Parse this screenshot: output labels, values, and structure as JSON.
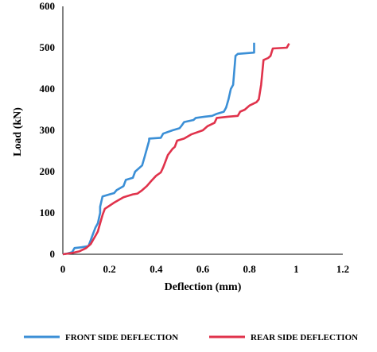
{
  "chart_data": {
    "type": "line",
    "xlabel": "Deflection (mm)",
    "ylabel": "Load (kN)",
    "xlim": [
      0,
      1.2
    ],
    "ylim": [
      0,
      600
    ],
    "xticks": [
      "0",
      "0.2",
      "0.4",
      "0.6",
      "0.8",
      "1",
      "1.2"
    ],
    "yticks": [
      "0",
      "100",
      "200",
      "300",
      "400",
      "500",
      "600"
    ],
    "grid": false,
    "legend_position": "bottom",
    "series": [
      {
        "name": "FRONT SIDE DEFLECTION",
        "color": "#3b8fd6",
        "points": [
          [
            0.0,
            0
          ],
          [
            0.02,
            2
          ],
          [
            0.04,
            5
          ],
          [
            0.05,
            15
          ],
          [
            0.08,
            17
          ],
          [
            0.11,
            20
          ],
          [
            0.12,
            35
          ],
          [
            0.13,
            50
          ],
          [
            0.14,
            65
          ],
          [
            0.15,
            75
          ],
          [
            0.16,
            100
          ],
          [
            0.16,
            115
          ],
          [
            0.17,
            140
          ],
          [
            0.2,
            145
          ],
          [
            0.22,
            148
          ],
          [
            0.23,
            155
          ],
          [
            0.26,
            165
          ],
          [
            0.27,
            180
          ],
          [
            0.3,
            185
          ],
          [
            0.31,
            200
          ],
          [
            0.34,
            215
          ],
          [
            0.35,
            235
          ],
          [
            0.36,
            255
          ],
          [
            0.37,
            275
          ],
          [
            0.37,
            280
          ],
          [
            0.42,
            282
          ],
          [
            0.43,
            292
          ],
          [
            0.47,
            300
          ],
          [
            0.5,
            305
          ],
          [
            0.51,
            312
          ],
          [
            0.52,
            320
          ],
          [
            0.56,
            325
          ],
          [
            0.57,
            330
          ],
          [
            0.61,
            333
          ],
          [
            0.64,
            335
          ],
          [
            0.66,
            340
          ],
          [
            0.69,
            345
          ],
          [
            0.7,
            355
          ],
          [
            0.71,
            375
          ],
          [
            0.72,
            400
          ],
          [
            0.73,
            410
          ],
          [
            0.74,
            480
          ],
          [
            0.75,
            485
          ],
          [
            0.82,
            488
          ],
          [
            0.82,
            512
          ]
        ]
      },
      {
        "name": "REAR SIDE DEFLECTION",
        "color": "#e0324b",
        "points": [
          [
            0.0,
            0
          ],
          [
            0.04,
            3
          ],
          [
            0.07,
            7
          ],
          [
            0.1,
            15
          ],
          [
            0.12,
            25
          ],
          [
            0.13,
            35
          ],
          [
            0.14,
            45
          ],
          [
            0.15,
            55
          ],
          [
            0.16,
            75
          ],
          [
            0.17,
            95
          ],
          [
            0.18,
            110
          ],
          [
            0.22,
            125
          ],
          [
            0.26,
            138
          ],
          [
            0.3,
            145
          ],
          [
            0.32,
            147
          ],
          [
            0.34,
            155
          ],
          [
            0.36,
            165
          ],
          [
            0.38,
            178
          ],
          [
            0.4,
            190
          ],
          [
            0.42,
            198
          ],
          [
            0.43,
            210
          ],
          [
            0.44,
            225
          ],
          [
            0.45,
            240
          ],
          [
            0.47,
            255
          ],
          [
            0.48,
            260
          ],
          [
            0.49,
            275
          ],
          [
            0.52,
            280
          ],
          [
            0.55,
            290
          ],
          [
            0.6,
            300
          ],
          [
            0.62,
            310
          ],
          [
            0.65,
            318
          ],
          [
            0.66,
            330
          ],
          [
            0.71,
            333
          ],
          [
            0.75,
            335
          ],
          [
            0.76,
            345
          ],
          [
            0.78,
            350
          ],
          [
            0.8,
            360
          ],
          [
            0.83,
            368
          ],
          [
            0.84,
            375
          ],
          [
            0.85,
            410
          ],
          [
            0.86,
            470
          ],
          [
            0.88,
            475
          ],
          [
            0.89,
            480
          ],
          [
            0.9,
            498
          ],
          [
            0.96,
            500
          ],
          [
            0.97,
            510
          ]
        ]
      }
    ]
  }
}
